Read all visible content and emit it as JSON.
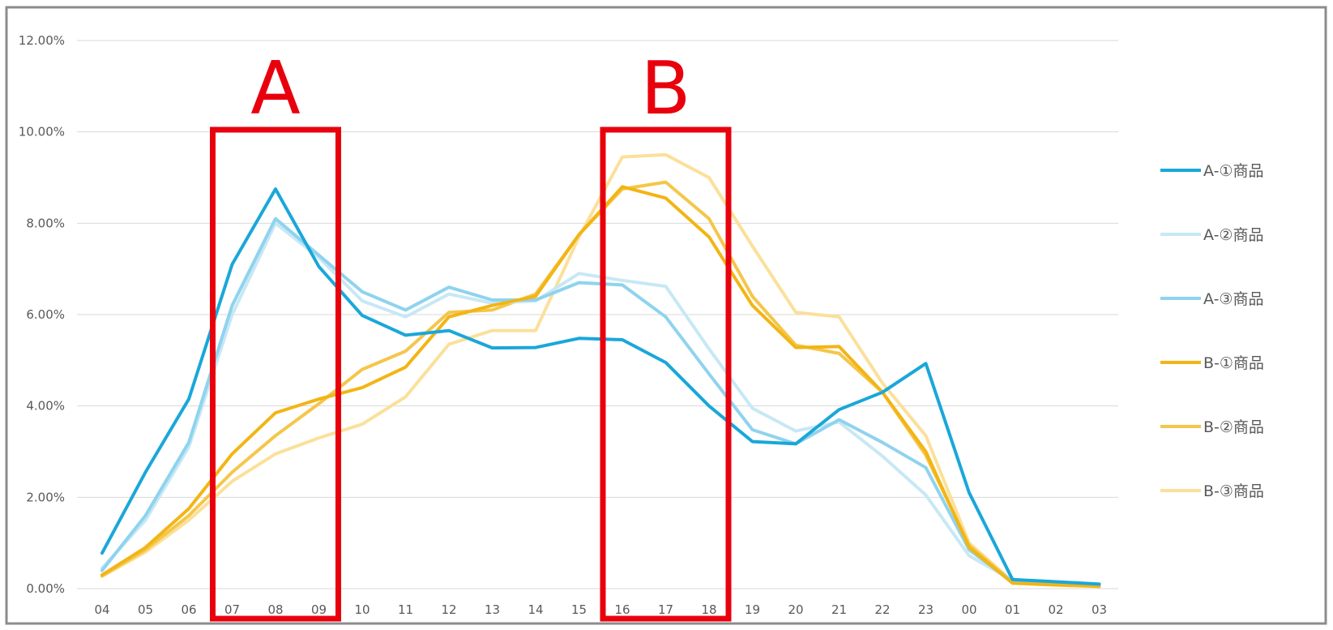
{
  "chart_data": {
    "type": "line",
    "x": [
      "04",
      "05",
      "06",
      "07",
      "08",
      "09",
      "10",
      "11",
      "12",
      "13",
      "14",
      "15",
      "16",
      "17",
      "18",
      "19",
      "20",
      "21",
      "22",
      "23",
      "00",
      "01",
      "02",
      "03"
    ],
    "ylim": [
      0,
      12
    ],
    "yticks": [
      0,
      2,
      4,
      6,
      8,
      10,
      12
    ],
    "ytick_labels": [
      "0.00%",
      "2.00%",
      "4.00%",
      "6.00%",
      "8.00%",
      "10.00%",
      "12.00%"
    ],
    "grid": true,
    "legend_position": "right",
    "series": [
      {
        "name": "A-①商品",
        "color": "#1aa7d9",
        "values": [
          0.78,
          2.55,
          4.15,
          7.1,
          8.75,
          7.05,
          5.98,
          5.55,
          5.65,
          5.27,
          5.28,
          5.48,
          5.45,
          4.95,
          4.0,
          3.22,
          3.17,
          3.92,
          4.3,
          4.93,
          2.1,
          0.2,
          0.15,
          0.1
        ]
      },
      {
        "name": "A-②商品",
        "color": "#c7e8f5",
        "values": [
          0.45,
          1.5,
          3.1,
          6.0,
          8.0,
          7.25,
          6.3,
          5.95,
          6.45,
          6.25,
          6.3,
          6.9,
          6.75,
          6.62,
          5.25,
          3.95,
          3.45,
          3.65,
          2.9,
          2.05,
          0.72,
          0.18,
          0.1,
          0.06
        ]
      },
      {
        "name": "A-③商品",
        "color": "#8fd3ee",
        "values": [
          0.4,
          1.6,
          3.2,
          6.2,
          8.1,
          7.3,
          6.5,
          6.1,
          6.6,
          6.32,
          6.32,
          6.7,
          6.65,
          5.95,
          4.7,
          3.48,
          3.17,
          3.7,
          3.2,
          2.65,
          0.85,
          0.15,
          0.1,
          0.07
        ]
      },
      {
        "name": "B-①商品",
        "color": "#f2b515",
        "values": [
          0.3,
          0.9,
          1.75,
          2.95,
          3.85,
          4.15,
          4.4,
          4.85,
          5.95,
          6.2,
          6.4,
          7.75,
          8.8,
          8.55,
          7.7,
          6.2,
          5.28,
          5.3,
          4.3,
          3.0,
          0.9,
          0.12,
          0.08,
          0.05
        ]
      },
      {
        "name": "B-②商品",
        "color": "#f5c64a",
        "values": [
          0.28,
          0.85,
          1.6,
          2.55,
          3.35,
          4.05,
          4.8,
          5.2,
          6.05,
          6.1,
          6.45,
          7.75,
          8.75,
          8.9,
          8.1,
          6.4,
          5.33,
          5.15,
          4.3,
          2.92,
          0.95,
          0.14,
          0.09,
          0.05
        ]
      },
      {
        "name": "B-③商品",
        "color": "#fbe09a",
        "values": [
          0.27,
          0.8,
          1.5,
          2.35,
          2.95,
          3.3,
          3.6,
          4.2,
          5.35,
          5.65,
          5.65,
          7.7,
          9.45,
          9.5,
          9.0,
          7.5,
          6.05,
          5.95,
          4.5,
          3.35,
          1.0,
          0.16,
          0.1,
          0.06
        ]
      }
    ],
    "annotations": [
      {
        "label": "A",
        "x_range": [
          "07",
          "09"
        ],
        "color": "#e8000d"
      },
      {
        "label": "B",
        "x_range": [
          "16",
          "18"
        ],
        "color": "#e8000d"
      }
    ]
  }
}
